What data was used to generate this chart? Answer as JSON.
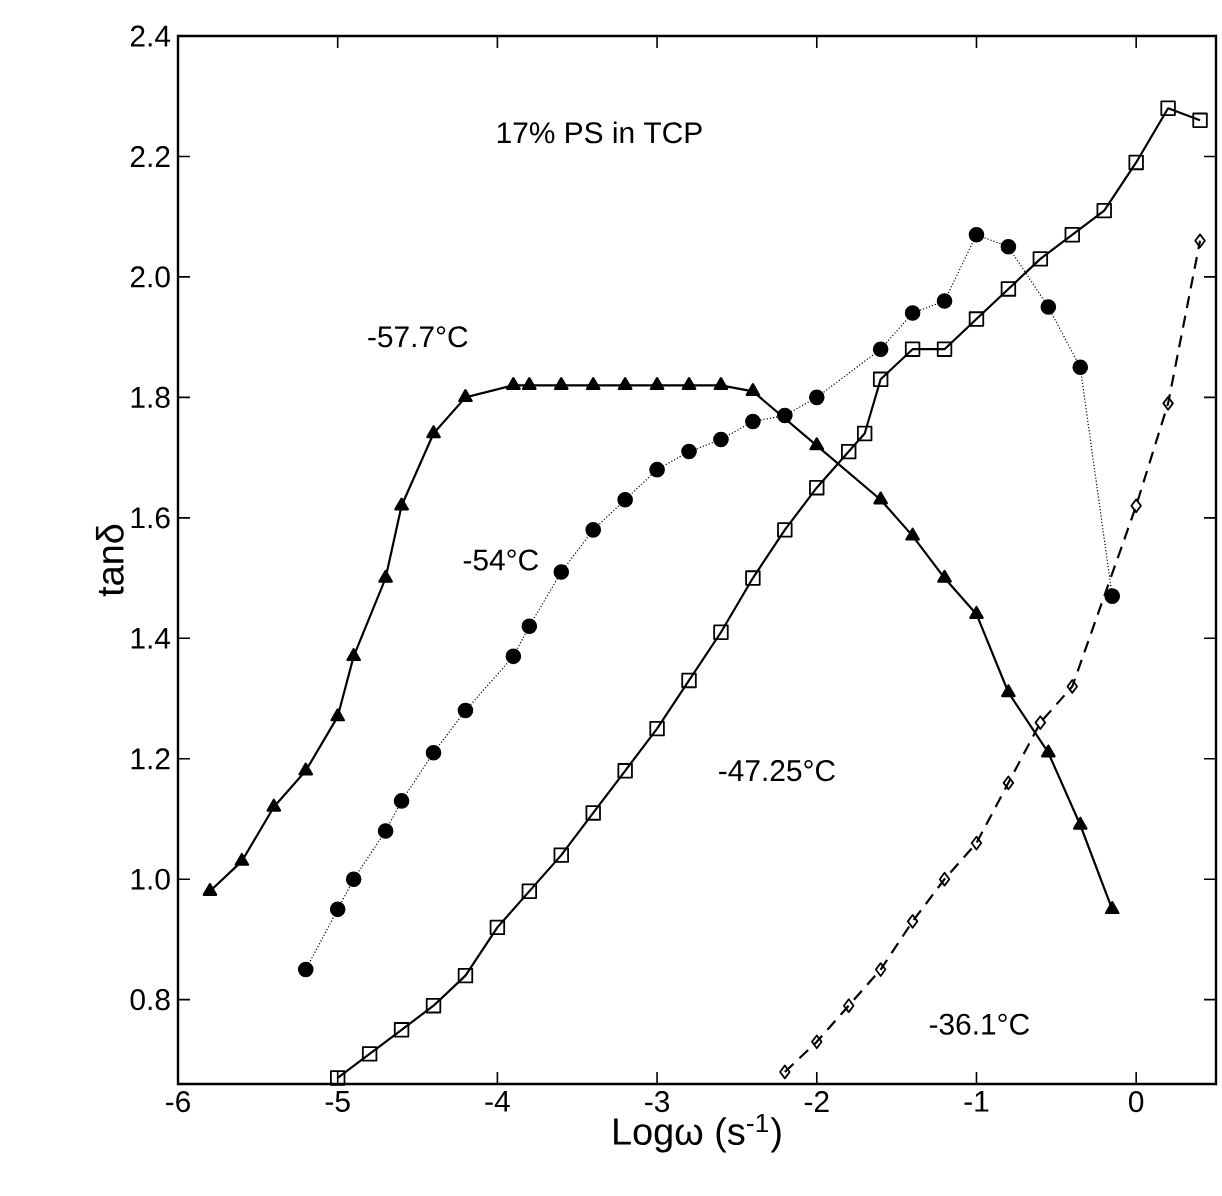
{
  "chart_data": {
    "type": "line",
    "xlabel": "Logω (s$^{-1}$)",
    "ylabel": "tanδ",
    "xlim": [
      -6,
      0.5
    ],
    "ylim": [
      0.66,
      2.4
    ],
    "xticks": [
      -6,
      -5,
      -4,
      -3,
      -2,
      -1,
      0
    ],
    "yticks": [
      0.8,
      {
        "value": 1,
        "label": "1.0"
      },
      1.2,
      1.4,
      1.6,
      1.8,
      {
        "value": 2,
        "label": "2.0"
      },
      2.2,
      2.4
    ],
    "grid": false,
    "legend": false,
    "title": "17% PS in TCP",
    "series": [
      {
        "name": "-57.7°C",
        "color": "#000000",
        "marker": "triangle",
        "line_style": "solid",
        "x": [
          -5.8,
          -5.6,
          -5.4,
          -5.2,
          -5.0,
          -4.9,
          -4.7,
          -4.6,
          -4.4,
          -4.2,
          -3.9,
          -3.8,
          -3.6,
          -3.4,
          -3.2,
          -3.0,
          -2.8,
          -2.6,
          -2.4,
          -2.0,
          -1.6,
          -1.4,
          -1.2,
          -1.0,
          -0.8,
          -0.55,
          -0.35,
          -0.15
        ],
        "values": [
          0.98,
          1.03,
          1.12,
          1.18,
          1.27,
          1.37,
          1.5,
          1.62,
          1.74,
          1.8,
          1.82,
          1.82,
          1.82,
          1.82,
          1.82,
          1.82,
          1.82,
          1.82,
          1.81,
          1.72,
          1.63,
          1.57,
          1.5,
          1.44,
          1.31,
          1.21,
          1.09,
          0.95
        ]
      },
      {
        "name": "-54°C",
        "color": "#000000",
        "marker": "circle",
        "line_style": "dotted",
        "x": [
          -5.2,
          -5.0,
          -4.9,
          -4.7,
          -4.6,
          -4.4,
          -4.2,
          -3.9,
          -3.8,
          -3.6,
          -3.4,
          -3.2,
          -3.0,
          -2.8,
          -2.6,
          -2.4,
          -2.2,
          -2.0,
          -1.6,
          -1.4,
          -1.2,
          -1.0,
          -0.8,
          -0.55,
          -0.35,
          -0.15
        ],
        "values": [
          0.85,
          0.95,
          1.0,
          1.08,
          1.13,
          1.21,
          1.28,
          1.37,
          1.42,
          1.51,
          1.58,
          1.63,
          1.68,
          1.71,
          1.73,
          1.76,
          1.77,
          1.8,
          1.88,
          1.94,
          1.96,
          2.07,
          2.05,
          1.95,
          1.85,
          1.47
        ]
      },
      {
        "name": "-47.25°C",
        "color": "#000000",
        "marker": "square",
        "line_style": "solid",
        "x": [
          -5.0,
          -4.8,
          -4.6,
          -4.4,
          -4.2,
          -4.0,
          -3.8,
          -3.6,
          -3.4,
          -3.2,
          -3.0,
          -2.8,
          -2.6,
          -2.4,
          -2.2,
          -2.0,
          -1.8,
          -1.7,
          -1.6,
          -1.4,
          -1.2,
          -1.0,
          -0.8,
          -0.6,
          -0.4,
          -0.2,
          0.0,
          0.2,
          0.4
        ],
        "values": [
          0.67,
          0.71,
          0.75,
          0.79,
          0.84,
          0.92,
          0.98,
          1.04,
          1.11,
          1.18,
          1.25,
          1.33,
          1.41,
          1.5,
          1.58,
          1.65,
          1.71,
          1.74,
          1.83,
          1.88,
          1.88,
          1.93,
          1.98,
          2.03,
          2.07,
          2.11,
          2.19,
          2.28,
          2.26
        ]
      },
      {
        "name": "-36.1°C",
        "color": "#000000",
        "marker": "diamond",
        "line_style": "dashed",
        "x": [
          -2.2,
          -2.0,
          -1.8,
          -1.6,
          -1.4,
          -1.2,
          -1.0,
          -0.8,
          -0.6,
          -0.4,
          0.0,
          0.2,
          0.4
        ],
        "values": [
          0.68,
          0.73,
          0.79,
          0.85,
          0.93,
          1.0,
          1.06,
          1.16,
          1.26,
          1.32,
          1.62,
          1.79,
          2.06
        ]
      }
    ]
  }
}
